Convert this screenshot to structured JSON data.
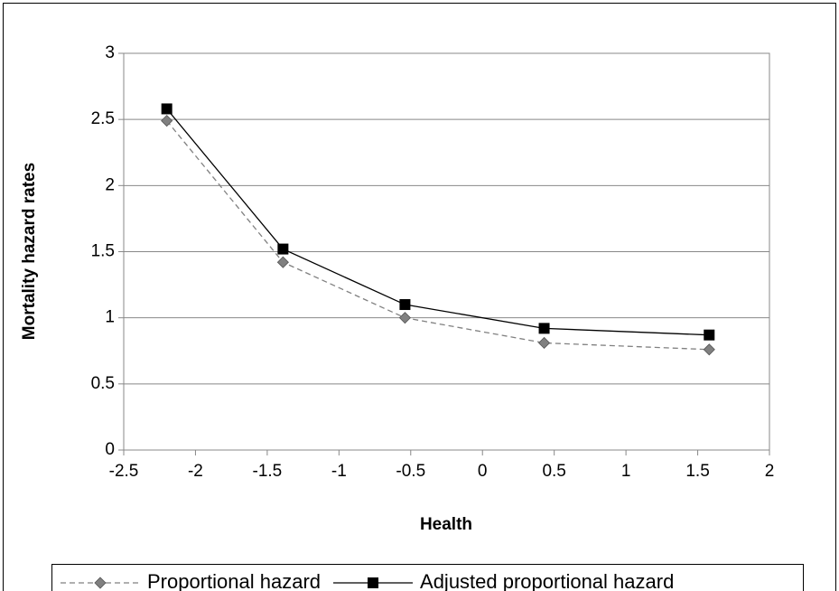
{
  "chart_data": {
    "type": "line",
    "x_label": "Health",
    "y_label": "Mortality hazard rates",
    "x": [
      -2.2,
      -1.39,
      -0.54,
      0.43,
      1.58
    ],
    "series": [
      {
        "name": "Proportional hazard",
        "color": "#808080",
        "dash": true,
        "marker": "diamond",
        "values": [
          2.49,
          1.42,
          1.0,
          0.81,
          0.76
        ]
      },
      {
        "name": "Adjusted proportional hazard",
        "color": "#000000",
        "dash": false,
        "marker": "square",
        "values": [
          2.58,
          1.52,
          1.1,
          0.92,
          0.87
        ]
      }
    ],
    "xlim": [
      -2.5,
      2
    ],
    "xticks": [
      -2.5,
      -2,
      -1.5,
      -1,
      -0.5,
      0,
      0.5,
      1,
      1.5,
      2
    ],
    "ylim": [
      0,
      3
    ],
    "yticks": [
      0,
      0.5,
      1,
      1.5,
      2,
      2.5,
      3
    ],
    "grid": true,
    "legend": "bottom"
  }
}
